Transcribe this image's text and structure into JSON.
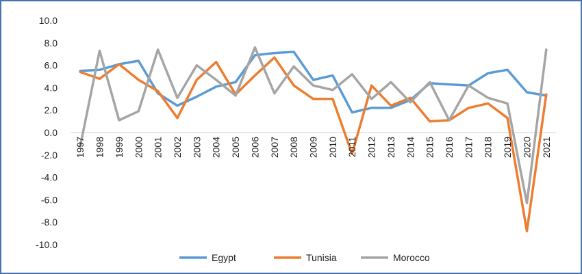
{
  "chart_data": {
    "type": "line",
    "title": "",
    "xlabel": "",
    "ylabel": "",
    "ylim": [
      -10,
      10
    ],
    "yticks": [
      10,
      8,
      6,
      4,
      2,
      0,
      -2,
      -4,
      -6,
      -8,
      -10
    ],
    "ytick_labels": [
      "10.0",
      "8.0",
      "6.0",
      "4.0",
      "2.0",
      "0.0",
      "-2.0",
      "-4.0",
      "-6.0",
      "-8.0",
      "-10.0"
    ],
    "grid": false,
    "legend_position": "bottom",
    "categories": [
      "1997",
      "1998",
      "1999",
      "2000",
      "2001",
      "2002",
      "2003",
      "2004",
      "2005",
      "2006",
      "2007",
      "2008",
      "2009",
      "2010",
      "2011",
      "2012",
      "2013",
      "2014",
      "2015",
      "2016",
      "2017",
      "2018",
      "2019",
      "2020",
      "2021"
    ],
    "series": [
      {
        "name": "Egypt",
        "color": "#5b9bd5",
        "values": [
          5.5,
          5.6,
          6.1,
          6.4,
          3.5,
          2.4,
          3.2,
          4.1,
          4.5,
          6.9,
          7.1,
          7.2,
          4.7,
          5.1,
          1.8,
          2.2,
          2.2,
          2.9,
          4.4,
          4.3,
          4.2,
          5.3,
          5.6,
          3.6,
          3.3
        ]
      },
      {
        "name": "Tunisia",
        "color": "#ed7d31",
        "values": [
          5.4,
          4.8,
          6.1,
          4.7,
          3.7,
          1.3,
          4.7,
          6.3,
          3.4,
          5.1,
          6.7,
          4.2,
          3.0,
          3.0,
          -1.9,
          4.2,
          2.4,
          3.1,
          1.0,
          1.1,
          2.2,
          2.6,
          1.3,
          -8.8,
          3.4
        ]
      },
      {
        "name": "Morocco",
        "color": "#a5a5a5",
        "values": [
          -1.2,
          7.3,
          1.1,
          1.9,
          7.4,
          3.1,
          6.0,
          4.7,
          3.3,
          7.6,
          3.5,
          5.9,
          4.2,
          3.8,
          5.2,
          3.0,
          4.5,
          2.7,
          4.5,
          1.1,
          4.2,
          3.1,
          2.6,
          -6.3,
          7.4
        ]
      }
    ]
  }
}
